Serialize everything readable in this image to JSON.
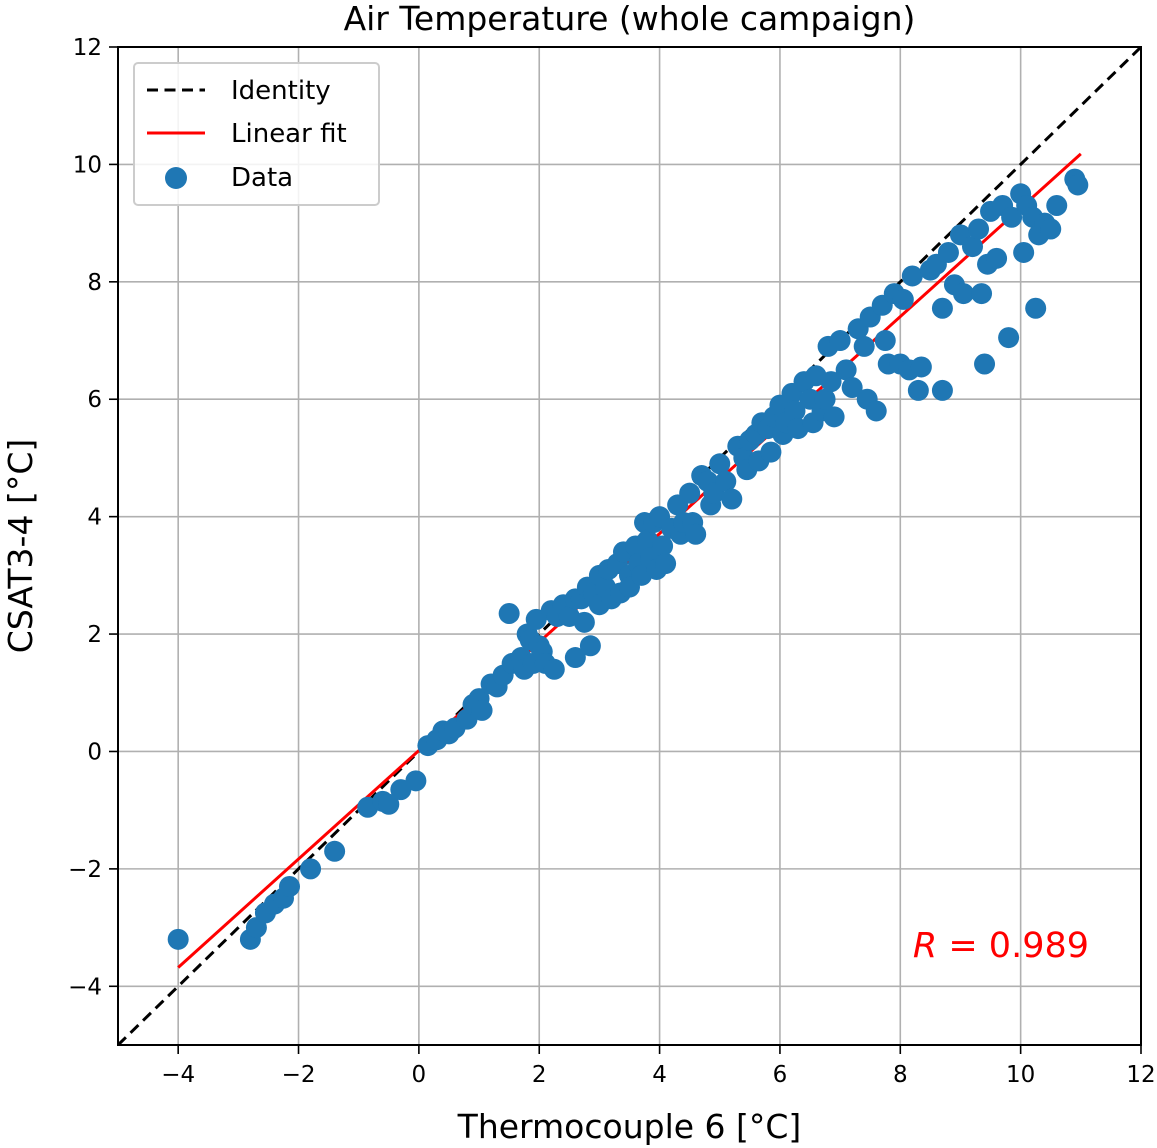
{
  "chart_data": {
    "type": "scatter",
    "title": "Air Temperature (whole campaign)",
    "xlabel": "Thermocouple 6 [°C]",
    "ylabel": "CSAT3-4 [°C]",
    "xlim": [
      -5,
      12
    ],
    "ylim": [
      -5,
      12
    ],
    "xticks": [
      -4,
      -2,
      0,
      2,
      4,
      6,
      8,
      10,
      12
    ],
    "yticks": [
      -4,
      -2,
      0,
      2,
      4,
      6,
      8,
      10,
      12
    ],
    "xtick_labels": [
      "−4",
      "−2",
      "0",
      "2",
      "4",
      "6",
      "8",
      "10",
      "12"
    ],
    "ytick_labels": [
      "−4",
      "−2",
      "0",
      "2",
      "4",
      "6",
      "8",
      "10",
      "12"
    ],
    "grid": true,
    "legend_position": "top-left",
    "legend": [
      {
        "label": "Identity",
        "style": "dashed-line",
        "color": "#000000"
      },
      {
        "label": "Linear fit",
        "style": "line",
        "color": "#ff0000"
      },
      {
        "label": "Data",
        "style": "marker",
        "color": "#1f77b4"
      }
    ],
    "identity_line": {
      "x": [
        -5,
        12
      ],
      "y": [
        -5,
        12
      ]
    },
    "linear_fit": {
      "x": [
        -4,
        11
      ],
      "y": [
        -3.68,
        10.18
      ]
    },
    "annotation": {
      "text_italic": "R",
      "text_rest": " = 0.989",
      "color": "#ff0000"
    },
    "series": [
      {
        "name": "Data",
        "color": "#1f77b4",
        "points": [
          [
            -4.0,
            -3.2
          ],
          [
            -2.8,
            -3.2
          ],
          [
            -2.7,
            -3.0
          ],
          [
            -2.55,
            -2.75
          ],
          [
            -2.4,
            -2.6
          ],
          [
            -2.25,
            -2.5
          ],
          [
            -2.15,
            -2.3
          ],
          [
            -1.8,
            -2.0
          ],
          [
            -1.4,
            -1.7
          ],
          [
            -0.85,
            -0.95
          ],
          [
            -0.6,
            -0.85
          ],
          [
            -0.5,
            -0.9
          ],
          [
            -0.3,
            -0.65
          ],
          [
            -0.05,
            -0.5
          ],
          [
            0.15,
            0.1
          ],
          [
            0.3,
            0.2
          ],
          [
            0.4,
            0.35
          ],
          [
            0.5,
            0.3
          ],
          [
            0.6,
            0.4
          ],
          [
            0.8,
            0.55
          ],
          [
            0.9,
            0.8
          ],
          [
            1.0,
            0.9
          ],
          [
            1.05,
            0.7
          ],
          [
            1.2,
            1.15
          ],
          [
            1.3,
            1.1
          ],
          [
            1.4,
            1.3
          ],
          [
            1.5,
            2.35
          ],
          [
            1.55,
            1.5
          ],
          [
            1.7,
            1.6
          ],
          [
            1.75,
            1.4
          ],
          [
            1.8,
            2.0
          ],
          [
            1.85,
            1.9
          ],
          [
            1.9,
            1.5
          ],
          [
            1.95,
            2.25
          ],
          [
            2.0,
            1.8
          ],
          [
            2.05,
            1.7
          ],
          [
            2.1,
            1.5
          ],
          [
            2.2,
            2.4
          ],
          [
            2.25,
            1.4
          ],
          [
            2.3,
            2.3
          ],
          [
            2.4,
            2.5
          ],
          [
            2.5,
            2.3
          ],
          [
            2.6,
            2.6
          ],
          [
            2.6,
            1.6
          ],
          [
            2.7,
            2.6
          ],
          [
            2.75,
            2.2
          ],
          [
            2.8,
            2.8
          ],
          [
            2.85,
            1.8
          ],
          [
            2.9,
            2.7
          ],
          [
            3.0,
            3.0
          ],
          [
            3.0,
            2.5
          ],
          [
            3.1,
            2.8
          ],
          [
            3.15,
            3.1
          ],
          [
            3.2,
            2.6
          ],
          [
            3.3,
            3.2
          ],
          [
            3.35,
            2.7
          ],
          [
            3.4,
            3.4
          ],
          [
            3.5,
            3.0
          ],
          [
            3.5,
            2.8
          ],
          [
            3.6,
            3.5
          ],
          [
            3.65,
            3.2
          ],
          [
            3.7,
            3.0
          ],
          [
            3.75,
            3.9
          ],
          [
            3.8,
            3.6
          ],
          [
            3.85,
            3.3
          ],
          [
            3.9,
            3.9
          ],
          [
            3.95,
            3.1
          ],
          [
            4.0,
            4.0
          ],
          [
            4.05,
            3.5
          ],
          [
            4.1,
            3.2
          ],
          [
            4.2,
            3.8
          ],
          [
            4.3,
            4.2
          ],
          [
            4.35,
            3.7
          ],
          [
            4.4,
            3.9
          ],
          [
            4.5,
            4.4
          ],
          [
            4.55,
            3.9
          ],
          [
            4.6,
            3.7
          ],
          [
            4.7,
            4.7
          ],
          [
            4.8,
            4.6
          ],
          [
            4.85,
            4.2
          ],
          [
            4.9,
            4.4
          ],
          [
            5.0,
            4.9
          ],
          [
            5.1,
            4.6
          ],
          [
            5.2,
            4.3
          ],
          [
            5.3,
            5.2
          ],
          [
            5.4,
            5.0
          ],
          [
            5.45,
            4.8
          ],
          [
            5.5,
            5.3
          ],
          [
            5.6,
            5.4
          ],
          [
            5.65,
            4.95
          ],
          [
            5.7,
            5.6
          ],
          [
            5.8,
            5.5
          ],
          [
            5.85,
            5.1
          ],
          [
            5.9,
            5.7
          ],
          [
            6.0,
            5.9
          ],
          [
            6.05,
            5.4
          ],
          [
            6.1,
            5.6
          ],
          [
            6.2,
            6.1
          ],
          [
            6.25,
            5.8
          ],
          [
            6.3,
            5.5
          ],
          [
            6.4,
            6.3
          ],
          [
            6.5,
            6.0
          ],
          [
            6.55,
            5.6
          ],
          [
            6.6,
            6.4
          ],
          [
            6.7,
            5.8
          ],
          [
            6.75,
            6.0
          ],
          [
            6.8,
            6.9
          ],
          [
            6.85,
            6.3
          ],
          [
            6.9,
            5.7
          ],
          [
            7.0,
            7.0
          ],
          [
            7.1,
            6.5
          ],
          [
            7.2,
            6.2
          ],
          [
            7.3,
            7.2
          ],
          [
            7.4,
            6.9
          ],
          [
            7.45,
            6.0
          ],
          [
            7.5,
            7.4
          ],
          [
            7.6,
            5.8
          ],
          [
            7.7,
            7.6
          ],
          [
            7.75,
            7.0
          ],
          [
            7.8,
            6.6
          ],
          [
            7.9,
            7.8
          ],
          [
            8.0,
            6.6
          ],
          [
            8.05,
            7.7
          ],
          [
            8.15,
            6.5
          ],
          [
            8.2,
            8.1
          ],
          [
            8.3,
            6.15
          ],
          [
            8.35,
            6.55
          ],
          [
            8.5,
            8.2
          ],
          [
            8.6,
            8.3
          ],
          [
            8.7,
            6.15
          ],
          [
            8.7,
            7.55
          ],
          [
            8.8,
            8.5
          ],
          [
            8.9,
            7.95
          ],
          [
            9.0,
            8.8
          ],
          [
            9.05,
            7.8
          ],
          [
            9.2,
            8.6
          ],
          [
            9.3,
            8.9
          ],
          [
            9.35,
            7.8
          ],
          [
            9.4,
            6.6
          ],
          [
            9.45,
            8.3
          ],
          [
            9.5,
            9.2
          ],
          [
            9.6,
            8.4
          ],
          [
            9.7,
            9.3
          ],
          [
            9.8,
            7.05
          ],
          [
            9.85,
            9.1
          ],
          [
            10.0,
            9.5
          ],
          [
            10.05,
            8.5
          ],
          [
            10.1,
            9.3
          ],
          [
            10.2,
            9.1
          ],
          [
            10.25,
            7.55
          ],
          [
            10.3,
            8.8
          ],
          [
            10.4,
            9.0
          ],
          [
            10.5,
            8.9
          ],
          [
            10.6,
            9.3
          ],
          [
            10.9,
            9.75
          ],
          [
            10.95,
            9.65
          ]
        ]
      }
    ]
  }
}
